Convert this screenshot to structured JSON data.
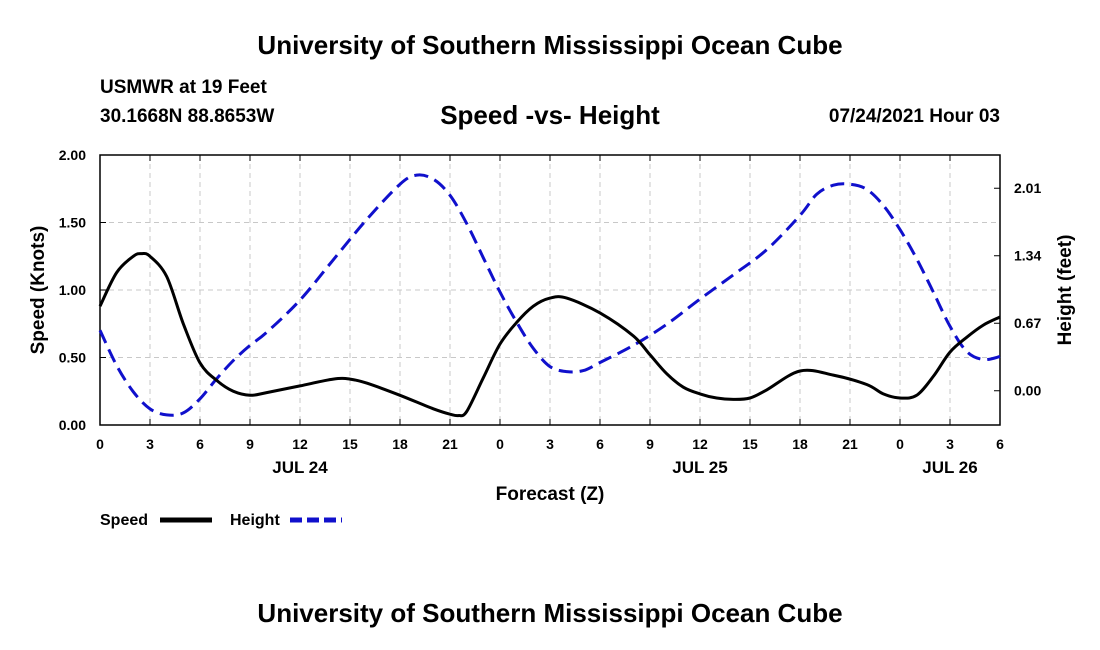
{
  "header": {
    "title": "University of Southern Mississippi Ocean Cube",
    "station": "USMWR at 19 Feet",
    "coords": "30.1668N  88.8653W",
    "subtitle": "Speed -vs- Height",
    "datetime": "07/24/2021 Hour 03"
  },
  "footer": {
    "title": "University of Southern Mississippi Ocean Cube"
  },
  "chart_data": {
    "type": "line",
    "title": "Speed -vs- Height",
    "xlabel": "Forecast (Z)",
    "ylabel": "Speed (Knots)",
    "y2label": "Height (feet)",
    "xlim": [
      0,
      54
    ],
    "ylim": [
      0,
      2.0
    ],
    "y2lim": [
      -0.34,
      2.34
    ],
    "xticks": [
      0,
      3,
      6,
      9,
      12,
      15,
      18,
      21,
      24,
      27,
      30,
      33,
      36,
      39,
      42,
      45,
      48,
      51,
      54
    ],
    "xtick_labels": [
      "0",
      "3",
      "6",
      "9",
      "12",
      "15",
      "18",
      "21",
      "0",
      "3",
      "6",
      "9",
      "12",
      "15",
      "18",
      "21",
      "0",
      "3",
      "6"
    ],
    "yticks": [
      0,
      0.5,
      1.0,
      1.5,
      2.0
    ],
    "ytick_labels": [
      "0.00",
      "0.50",
      "1.00",
      "1.50",
      "2.00"
    ],
    "y2ticks": [
      0,
      0.67,
      1.34,
      2.01
    ],
    "y2tick_labels": [
      "0.00",
      "0.67",
      "1.34",
      "2.01"
    ],
    "date_labels": [
      {
        "hour": 12,
        "label": "JUL 24"
      },
      {
        "hour": 36,
        "label": "JUL 25"
      },
      {
        "hour": 51,
        "label": "JUL 26"
      }
    ],
    "grid": true,
    "legend": {
      "placement": "below-left"
    },
    "series": [
      {
        "name": "Speed",
        "axis": "left",
        "color": "#000000",
        "style": "solid",
        "x": [
          0,
          1,
          2,
          2.5,
          3,
          4,
          5,
          6,
          7,
          8,
          9,
          10,
          12,
          14,
          15,
          16,
          18,
          20,
          21,
          21.5,
          22,
          23,
          24,
          25,
          26,
          27,
          28,
          30,
          32,
          33,
          34,
          35,
          36,
          37,
          38,
          39,
          40,
          42,
          44,
          46,
          47,
          48,
          49,
          50,
          51,
          52,
          53,
          54
        ],
        "y": [
          0.88,
          1.13,
          1.25,
          1.27,
          1.25,
          1.1,
          0.75,
          0.46,
          0.33,
          0.25,
          0.22,
          0.24,
          0.29,
          0.34,
          0.34,
          0.31,
          0.22,
          0.12,
          0.08,
          0.07,
          0.1,
          0.35,
          0.6,
          0.76,
          0.88,
          0.94,
          0.94,
          0.83,
          0.66,
          0.52,
          0.38,
          0.28,
          0.23,
          0.2,
          0.19,
          0.2,
          0.26,
          0.4,
          0.37,
          0.3,
          0.23,
          0.2,
          0.22,
          0.36,
          0.54,
          0.65,
          0.74,
          0.8
        ]
      },
      {
        "name": "Height",
        "axis": "right",
        "color": "#1010cc",
        "style": "dashed",
        "x": [
          0,
          1,
          2,
          3,
          4,
          5,
          6,
          7,
          8,
          9,
          10,
          12,
          14,
          16,
          18,
          19,
          20,
          21,
          22,
          23,
          24,
          25,
          26,
          27,
          28,
          29,
          30,
          32,
          34,
          36,
          38,
          40,
          42,
          43,
          44,
          45,
          46,
          47,
          48,
          49,
          50,
          51,
          52,
          53,
          54
        ],
        "y": [
          0.6,
          0.25,
          -0.01,
          -0.18,
          -0.24,
          -0.22,
          -0.08,
          0.12,
          0.3,
          0.45,
          0.58,
          0.9,
          1.3,
          1.7,
          2.05,
          2.14,
          2.1,
          1.94,
          1.66,
          1.32,
          0.98,
          0.68,
          0.42,
          0.24,
          0.19,
          0.2,
          0.28,
          0.45,
          0.66,
          0.91,
          1.15,
          1.4,
          1.74,
          1.95,
          2.04,
          2.05,
          2.0,
          1.84,
          1.6,
          1.31,
          0.98,
          0.64,
          0.39,
          0.31,
          0.34
        ]
      }
    ]
  }
}
